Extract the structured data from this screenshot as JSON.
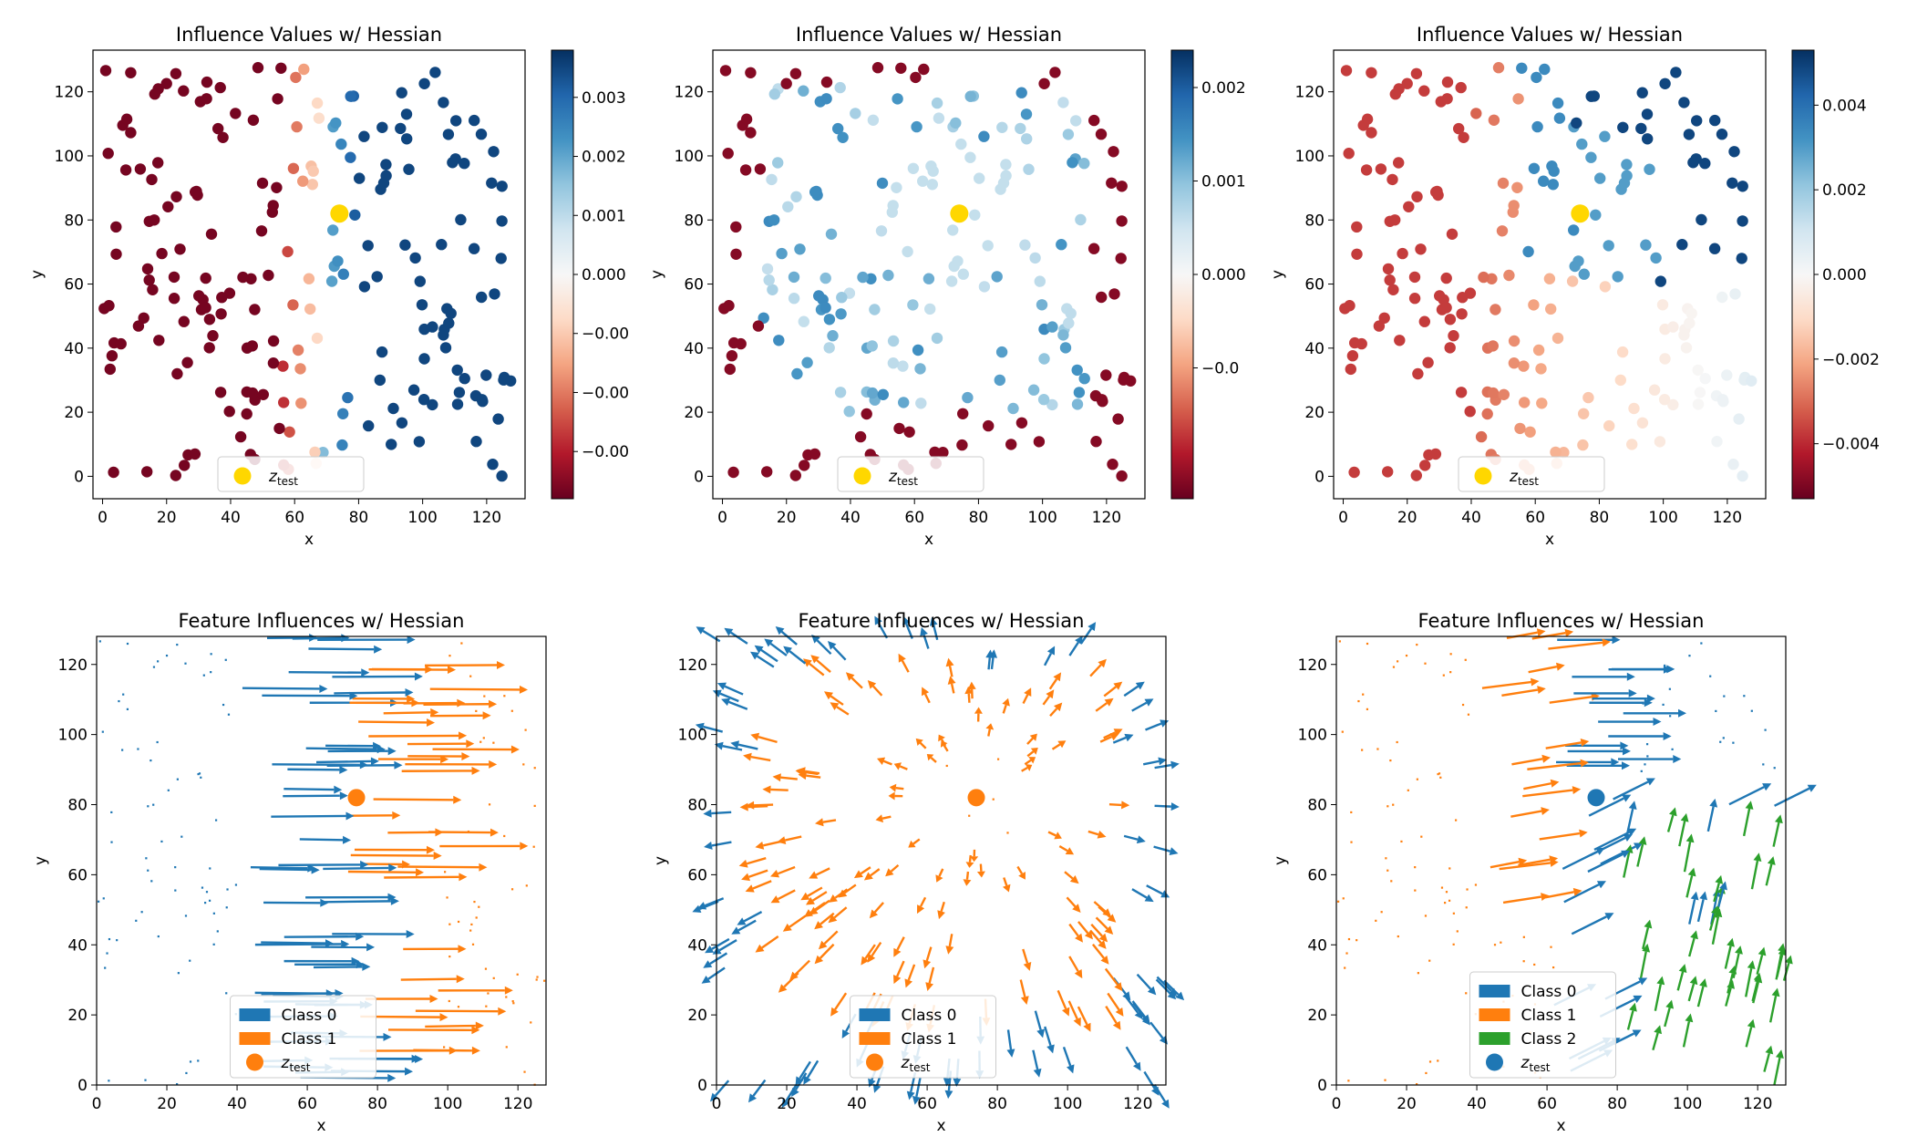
{
  "colors": {
    "class0": "#1f77b4",
    "class1": "#ff7f0e",
    "class2": "#2ca02c",
    "test_point": "#ffd700",
    "cmap_low": "#67001f",
    "cmap_mid": "#f7f7f7",
    "cmap_high": "#053061"
  },
  "chart_data": [
    {
      "type": "scatter",
      "title": "Influence Values w/ Hessian",
      "xlabel": "x",
      "ylabel": "y",
      "xlim": [
        -3,
        132
      ],
      "ylim": [
        -7,
        133
      ],
      "xticks": [
        0,
        20,
        40,
        60,
        80,
        100,
        120
      ],
      "yticks": [
        0,
        20,
        40,
        60,
        80,
        100,
        120
      ],
      "test_point": {
        "x": 74,
        "y": 82
      },
      "pattern": "split",
      "colorbar": {
        "vmin": -0.0038,
        "vmax": 0.0038,
        "ticks": [
          -0.003,
          -0.002,
          -0.001,
          0,
          0.001,
          0.002,
          0.003
        ],
        "tick_labels": [
          "−0.00",
          "−0.00",
          "−0.00",
          "0.000",
          "0.001",
          "0.002",
          "0.003"
        ]
      },
      "legend": {
        "position": "lower-center",
        "entries": [
          {
            "label": "z",
            "sub": "test",
            "marker": "dot"
          }
        ]
      }
    },
    {
      "type": "scatter",
      "title": "Influence Values w/ Hessian",
      "xlabel": "x",
      "ylabel": "y",
      "xlim": [
        -3,
        132
      ],
      "ylim": [
        -7,
        133
      ],
      "xticks": [
        0,
        20,
        40,
        60,
        80,
        100,
        120
      ],
      "yticks": [
        0,
        20,
        40,
        60,
        80,
        100,
        120
      ],
      "test_point": {
        "x": 74,
        "y": 82
      },
      "pattern": "ring",
      "colorbar": {
        "vmin": -0.0024,
        "vmax": 0.0024,
        "ticks": [
          -0.001,
          0,
          0.001,
          0.002
        ],
        "tick_labels": [
          "−0.0",
          "0.000",
          "0.001",
          "0.002"
        ]
      },
      "legend": {
        "position": "lower-center",
        "entries": [
          {
            "label": "z",
            "sub": "test",
            "marker": "dot"
          }
        ]
      }
    },
    {
      "type": "scatter",
      "title": "Influence Values w/ Hessian",
      "xlabel": "x",
      "ylabel": "y",
      "xlim": [
        -3,
        132
      ],
      "ylim": [
        -7,
        133
      ],
      "xticks": [
        0,
        20,
        40,
        60,
        80,
        100,
        120
      ],
      "yticks": [
        0,
        20,
        40,
        60,
        80,
        100,
        120
      ],
      "test_point": {
        "x": 74,
        "y": 82
      },
      "pattern": "three",
      "colorbar": {
        "vmin": -0.0053,
        "vmax": 0.0053,
        "ticks": [
          -0.004,
          -0.002,
          0,
          0.002,
          0.004
        ],
        "tick_labels": [
          "−0.004",
          "−0.002",
          "0.000",
          "0.002",
          "0.004"
        ]
      },
      "legend": {
        "position": "lower-center",
        "entries": [
          {
            "label": "z",
            "sub": "test",
            "marker": "dot"
          }
        ]
      }
    },
    {
      "type": "quiver",
      "title": "Feature Influences w/ Hessian",
      "xlabel": "x",
      "ylabel": "y",
      "xlim": [
        0,
        128
      ],
      "ylim": [
        0,
        128
      ],
      "xticks": [
        0,
        20,
        40,
        60,
        80,
        100,
        120
      ],
      "yticks": [
        0,
        20,
        40,
        60,
        80,
        100,
        120
      ],
      "test_point": {
        "x": 74,
        "y": 82,
        "color": "class1"
      },
      "pattern": "split",
      "legend": {
        "position": "lower-center",
        "entries": [
          {
            "label": "Class 0",
            "marker": "patch",
            "color": "class0"
          },
          {
            "label": "Class 1",
            "marker": "patch",
            "color": "class1"
          },
          {
            "label": "z",
            "sub": "test",
            "marker": "dot",
            "color": "class1"
          }
        ]
      }
    },
    {
      "type": "quiver",
      "title": "Feature Influences w/ Hessian",
      "xlabel": "x",
      "ylabel": "y",
      "xlim": [
        0,
        128
      ],
      "ylim": [
        0,
        128
      ],
      "xticks": [
        0,
        20,
        40,
        60,
        80,
        100,
        120
      ],
      "yticks": [
        0,
        20,
        40,
        60,
        80,
        100,
        120
      ],
      "test_point": {
        "x": 74,
        "y": 82,
        "color": "class1"
      },
      "pattern": "ring",
      "legend": {
        "position": "lower-center",
        "entries": [
          {
            "label": "Class 0",
            "marker": "patch",
            "color": "class0"
          },
          {
            "label": "Class 1",
            "marker": "patch",
            "color": "class1"
          },
          {
            "label": "z",
            "sub": "test",
            "marker": "dot",
            "color": "class1"
          }
        ]
      }
    },
    {
      "type": "quiver",
      "title": "Feature Influences w/ Hessian",
      "xlabel": "x",
      "ylabel": "y",
      "xlim": [
        0,
        128
      ],
      "ylim": [
        0,
        128
      ],
      "xticks": [
        0,
        20,
        40,
        60,
        80,
        100,
        120
      ],
      "yticks": [
        0,
        20,
        40,
        60,
        80,
        100,
        120
      ],
      "test_point": {
        "x": 74,
        "y": 82,
        "color": "class0"
      },
      "pattern": "three",
      "legend": {
        "position": "lower-center",
        "entries": [
          {
            "label": "Class 0",
            "marker": "patch",
            "color": "class0"
          },
          {
            "label": "Class 1",
            "marker": "patch",
            "color": "class1"
          },
          {
            "label": "Class 2",
            "marker": "patch",
            "color": "class2"
          },
          {
            "label": "z",
            "sub": "test",
            "marker": "dot",
            "color": "class0"
          }
        ]
      }
    }
  ]
}
